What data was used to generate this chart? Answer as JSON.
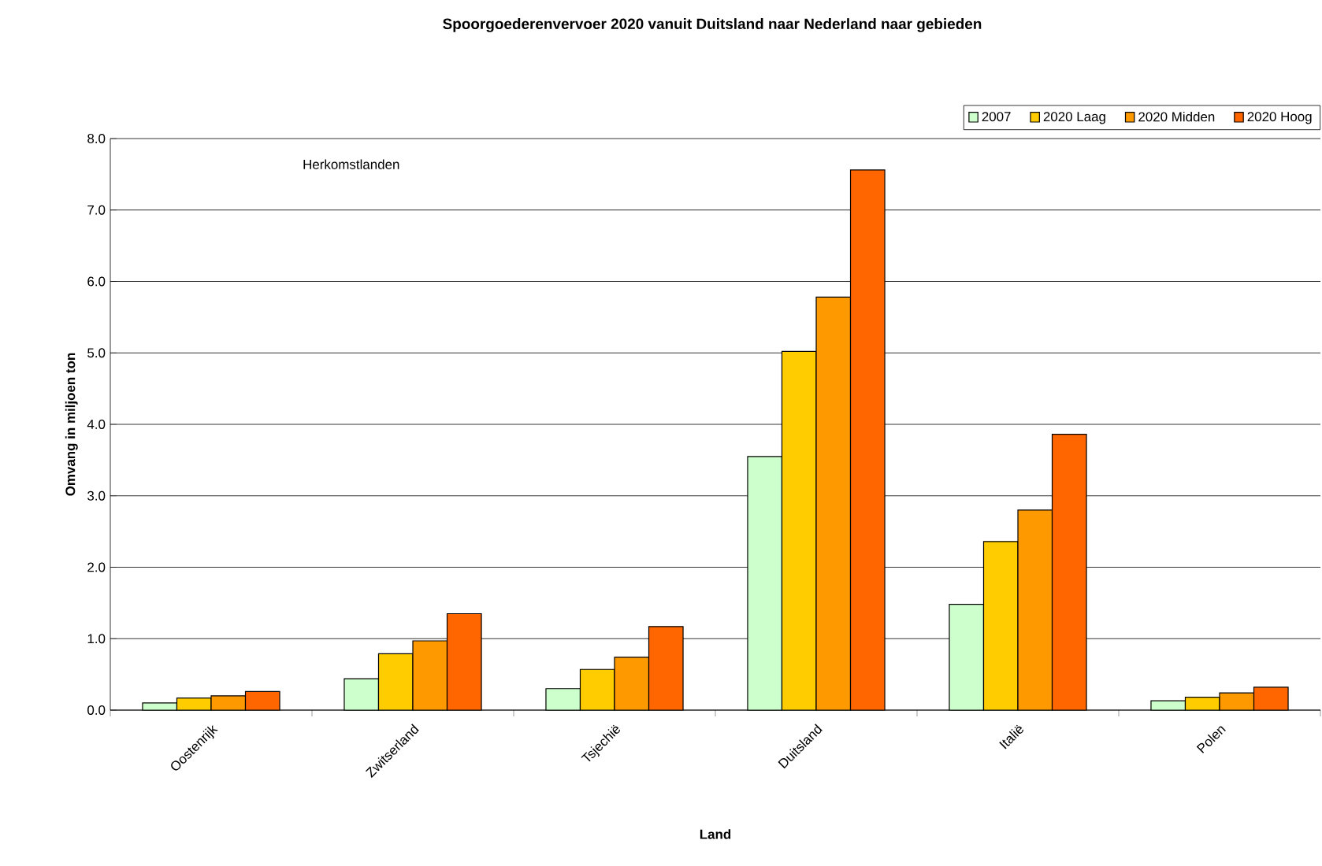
{
  "chart_data": {
    "type": "bar",
    "title": "Spoorgoederenvervoer 2020 vanuit Duitsland naar Nederland naar gebieden",
    "xlabel": "Land",
    "ylabel": "Omvang in miljoen ton",
    "annotations": [
      "Herkomstlanden"
    ],
    "categories": [
      "Oostenrijk",
      "Zwitserland",
      "Tsjechië",
      "Duitsland",
      "Italië",
      "Polen"
    ],
    "series": [
      {
        "name": "2007",
        "color": "#ccffcc",
        "values": [
          0.1,
          0.44,
          0.3,
          3.55,
          1.48,
          0.13
        ]
      },
      {
        "name": "2020 Laag",
        "color": "#ffcc00",
        "values": [
          0.17,
          0.79,
          0.57,
          5.02,
          2.36,
          0.18
        ]
      },
      {
        "name": "2020 Midden",
        "color": "#ff9900",
        "values": [
          0.2,
          0.97,
          0.74,
          5.78,
          2.8,
          0.24
        ]
      },
      {
        "name": "2020 Hoog",
        "color": "#ff6600",
        "values": [
          0.26,
          1.35,
          1.17,
          7.56,
          3.86,
          0.32
        ]
      }
    ],
    "ylim": [
      0,
      8
    ],
    "yticks": [
      {
        "value": 0,
        "label": "0.0"
      },
      {
        "value": 1,
        "label": "1.0"
      },
      {
        "value": 2,
        "label": "2.0"
      },
      {
        "value": 3,
        "label": "3.0"
      },
      {
        "value": 4,
        "label": "4.0"
      },
      {
        "value": 5,
        "label": "5.0"
      },
      {
        "value": 6,
        "label": "6.0"
      },
      {
        "value": 7,
        "label": "7.0"
      },
      {
        "value": 8,
        "label": "8.0"
      }
    ],
    "grid": "y",
    "legend": "top right"
  }
}
